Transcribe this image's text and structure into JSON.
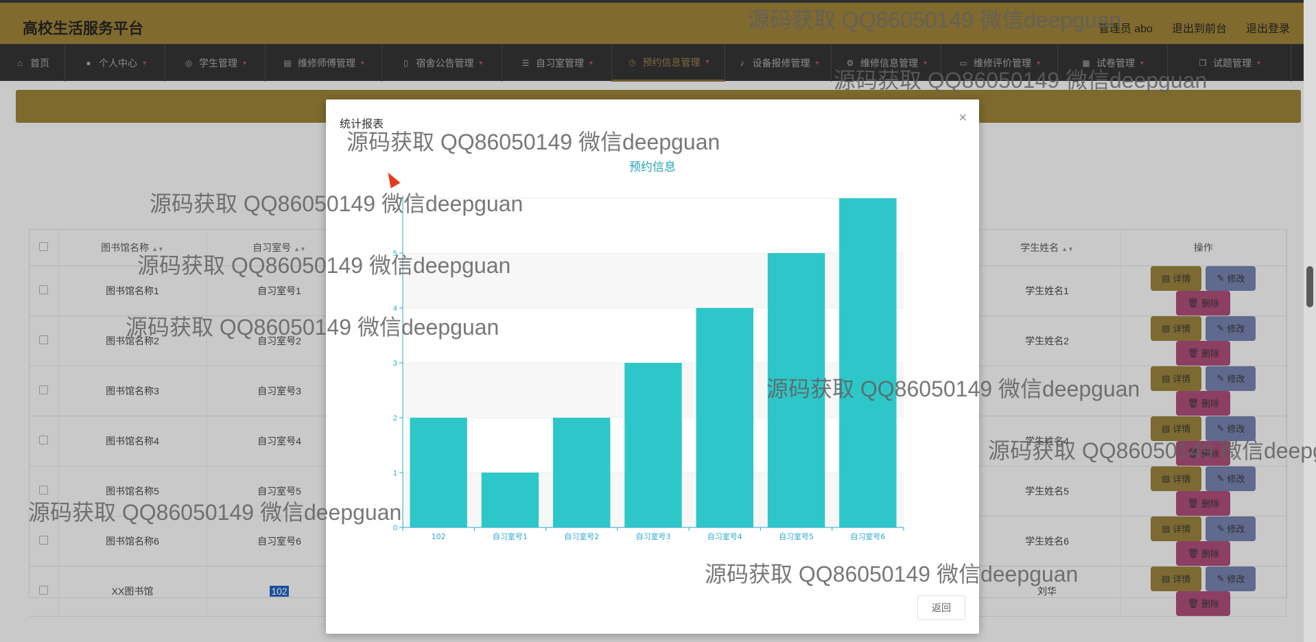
{
  "header": {
    "title": "高校生活服务平台",
    "user_label": "管理员 abo",
    "front_label": "退出到前台",
    "logout_label": "退出登录"
  },
  "nav": [
    {
      "label": "首页",
      "icon": "home-icon"
    },
    {
      "label": "个人中心",
      "icon": "user-icon"
    },
    {
      "label": "学生管理",
      "icon": "student-icon"
    },
    {
      "label": "维修师傅管理",
      "icon": "repairman-icon"
    },
    {
      "label": "宿舍公告管理",
      "icon": "notice-icon"
    },
    {
      "label": "自习室管理",
      "icon": "list-icon"
    },
    {
      "label": "预约信息管理",
      "icon": "clock-icon",
      "active": true
    },
    {
      "label": "设备报修管理",
      "icon": "mic-icon"
    },
    {
      "label": "维修信息管理",
      "icon": "gear-icon"
    },
    {
      "label": "维修评价管理",
      "icon": "comment-icon"
    },
    {
      "label": "试卷管理",
      "icon": "print-icon"
    },
    {
      "label": "试题管理",
      "icon": "copy-icon"
    }
  ],
  "table": {
    "headers": {
      "library": "图书馆名称",
      "room": "自习室号",
      "student": "学生姓名",
      "ops": "操作"
    },
    "rows": [
      {
        "library": "图书馆名称1",
        "room": "自习室号1",
        "student": "学生姓名1"
      },
      {
        "library": "图书馆名称2",
        "room": "自习室号2",
        "student": "学生姓名2"
      },
      {
        "library": "图书馆名称3",
        "room": "自习室号3",
        "student": ""
      },
      {
        "library": "图书馆名称4",
        "room": "自习室号4",
        "student": "学生姓名4"
      },
      {
        "library": "图书馆名称5",
        "room": "自习室号5",
        "student": "学生姓名5"
      },
      {
        "library": "图书馆名称6",
        "room": "自习室号6",
        "student": "学生姓名6"
      },
      {
        "library": "XX图书馆",
        "room": "102",
        "student": "刘华"
      }
    ],
    "buttons": {
      "detail": "详情",
      "edit": "修改",
      "delete": "删除"
    }
  },
  "modal": {
    "title": "统计报表",
    "back_label": "返回"
  },
  "chart_data": {
    "type": "bar",
    "title": "预约信息",
    "categories": [
      "102",
      "自习室号1",
      "自习室号2",
      "自习室号3",
      "自习室号4",
      "自习室号5",
      "自习室号6"
    ],
    "values": [
      2,
      1,
      2,
      3,
      4,
      5,
      6
    ],
    "ylim": [
      0,
      6
    ],
    "yticks": [
      0,
      1,
      2,
      3,
      4,
      5
    ],
    "bar_color": "#2ec7c9",
    "axis_color": "#2aa8d0"
  },
  "watermark": "源码获取 QQ86050149 微信deepguan",
  "colors": {
    "header": "#806a2d",
    "nav": "#2a2a2a",
    "active_nav": "#7e6a3d"
  }
}
